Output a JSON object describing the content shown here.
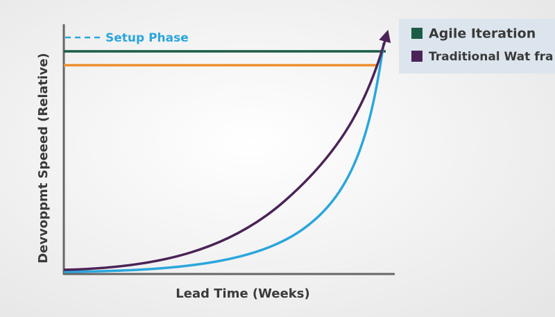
{
  "setup_label": "Setup Phase",
  "legend": {
    "items": [
      "Agile Iteration",
      "Traditional Wat fra"
    ]
  },
  "x_axis_label": "Lead Time (Weeks)",
  "y_axis_label": "Devvoppmt Speeed (Relative)"
}
